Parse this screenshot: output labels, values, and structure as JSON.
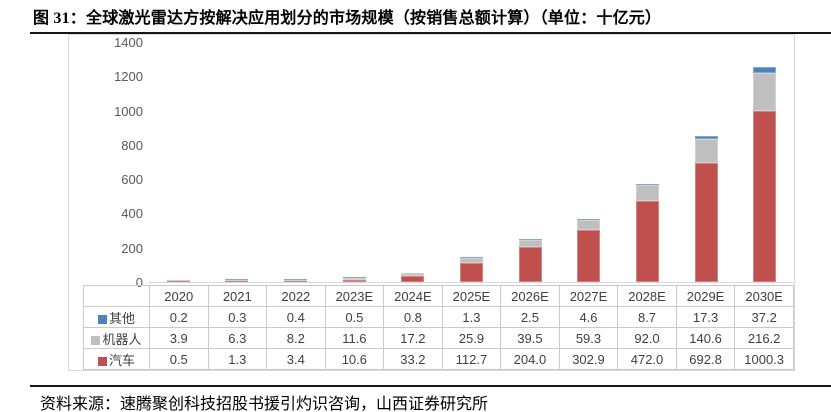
{
  "figure": {
    "title": "图 31：全球激光雷达方按解决应用划分的市场规模（按销售总额计算）（单位：十亿元）",
    "source": "资料来源：速腾聚创科技招股书援引灼识咨询，山西证券研究所"
  },
  "chart_data": {
    "type": "bar",
    "stacked": true,
    "title": "全球激光雷达方按解决应用划分的市场规模（按销售总额计算）",
    "unit": "十亿元",
    "categories": [
      "2020",
      "2021",
      "2022",
      "2023E",
      "2024E",
      "2025E",
      "2026E",
      "2027E",
      "2028E",
      "2029E",
      "2030E"
    ],
    "series": [
      {
        "name": "其他",
        "color": "#4F81BD",
        "values": [
          0.2,
          0.3,
          0.4,
          0.5,
          0.8,
          1.3,
          2.5,
          4.6,
          8.7,
          17.3,
          37.2
        ]
      },
      {
        "name": "机器人",
        "color": "#BFBFBF",
        "values": [
          3.9,
          6.3,
          8.2,
          11.6,
          17.2,
          25.9,
          39.5,
          59.3,
          92.0,
          140.6,
          216.2
        ]
      },
      {
        "name": "汽车",
        "color": "#C0504D",
        "values": [
          0.5,
          1.3,
          3.4,
          10.6,
          33.2,
          112.7,
          204.0,
          302.9,
          472.0,
          692.8,
          1000.3
        ]
      }
    ],
    "stack_order_bottom_to_top": [
      "汽车",
      "机器人",
      "其他"
    ],
    "ylim": [
      0,
      1400
    ],
    "ytick_step": 200,
    "yticks": [
      0,
      200,
      400,
      600,
      800,
      1000,
      1200,
      1400
    ],
    "grid": false,
    "legend_position": "table-left-column",
    "value_format_decimals": 1
  }
}
